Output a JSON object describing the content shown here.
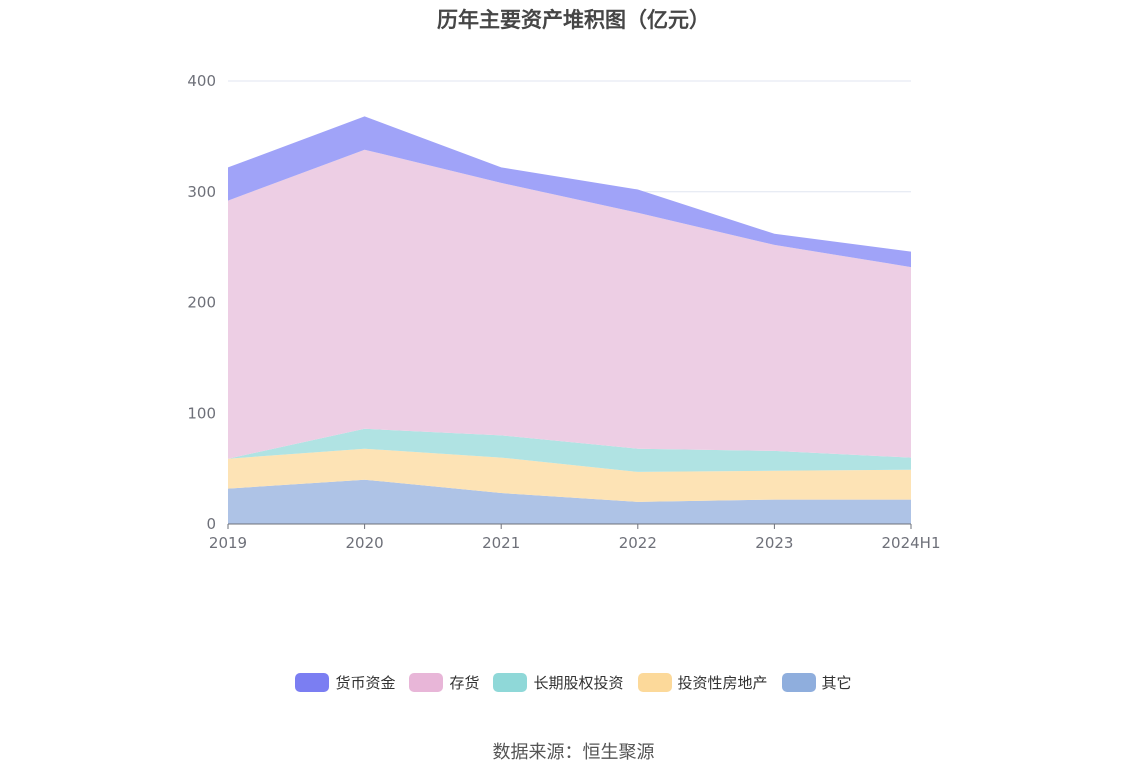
{
  "chart_data": {
    "type": "area",
    "stacked": true,
    "title": "历年主要资产堆积图（亿元）",
    "categories": [
      "2019",
      "2020",
      "2021",
      "2022",
      "2023",
      "2024H1"
    ],
    "ylim": [
      0,
      400
    ],
    "yticks": [
      0,
      100,
      200,
      300,
      400
    ],
    "grid": true,
    "legend_position": "bottom",
    "series": [
      {
        "name": "其它",
        "color": "#aec3e6",
        "legend_color": "#8faedd",
        "values": [
          32,
          40,
          28,
          20,
          22,
          22
        ]
      },
      {
        "name": "投资性房地产",
        "color": "#fde3b5",
        "legend_color": "#fcd99a",
        "values": [
          27,
          28,
          32,
          27,
          26,
          27
        ]
      },
      {
        "name": "长期股权投资",
        "color": "#b0e3e3",
        "legend_color": "#8fd8d8",
        "values": [
          0,
          18,
          20,
          21,
          18,
          11
        ]
      },
      {
        "name": "存货",
        "color": "#edcee4",
        "legend_color": "#e8b6d8",
        "values": [
          233,
          252,
          228,
          213,
          186,
          172
        ]
      },
      {
        "name": "货币资金",
        "color": "#a0a3f8",
        "legend_color": "#7b7ef2",
        "values": [
          30,
          30,
          14,
          21,
          10,
          14
        ]
      }
    ],
    "source": "数据来源：恒生聚源"
  }
}
